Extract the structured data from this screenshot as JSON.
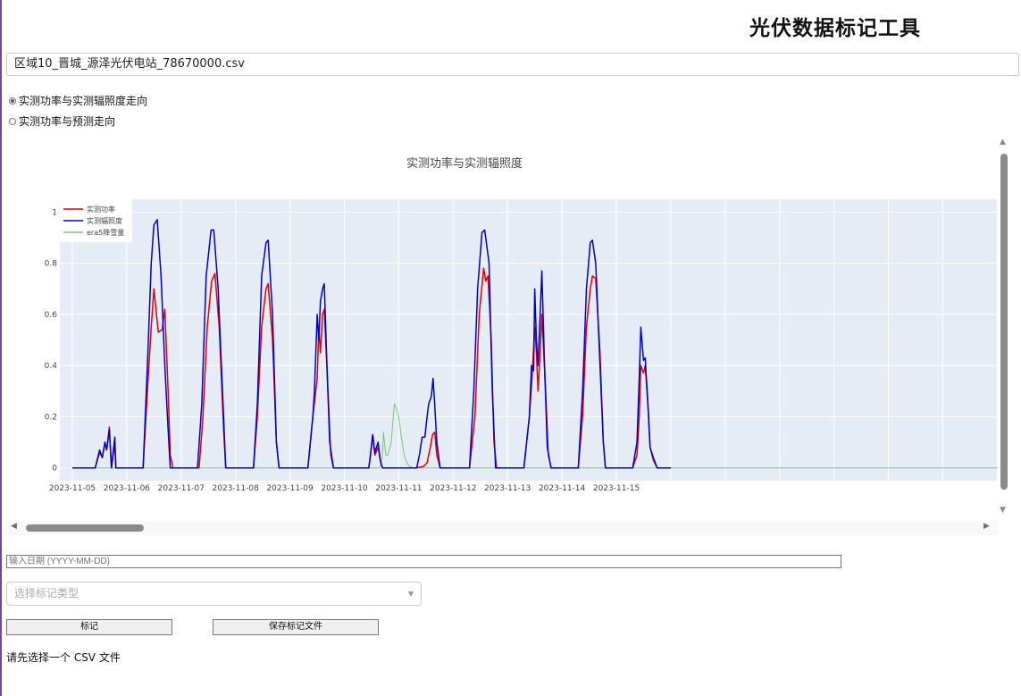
{
  "app": {
    "title": "光伏数据标记工具"
  },
  "file_select": {
    "value": "区域10_晋城_源泽光伏电站_78670000.csv"
  },
  "view_options": [
    {
      "label": "实测功率与实测辐照度走向",
      "selected": true
    },
    {
      "label": "实测功率与预测走向",
      "selected": false
    }
  ],
  "chart_data": {
    "type": "line",
    "title": "实测功率与实测辐照度",
    "x_ticks": [
      "2023-11-05",
      "2023-11-06",
      "2023-11-07",
      "2023-11-08",
      "2023-11-09",
      "2023-11-10",
      "2023-11-11",
      "2023-11-12",
      "2023-11-13",
      "2023-11-14",
      "2023-11-15"
    ],
    "y_ticks": [
      "0",
      "0.2",
      "0.4",
      "0.6",
      "0.8",
      "1"
    ],
    "ylim": [
      -0.05,
      1.05
    ],
    "grid": true,
    "legend_position": "top-left",
    "series": [
      {
        "name": "实测功率",
        "color": "#e00000",
        "points": [
          [
            0,
            0
          ],
          [
            0.42,
            0
          ],
          [
            0.5,
            0.06
          ],
          [
            0.55,
            0.04
          ],
          [
            0.6,
            0.1
          ],
          [
            0.63,
            0.07
          ],
          [
            0.68,
            0.16
          ],
          [
            0.72,
            0
          ],
          [
            0.78,
            0.1
          ],
          [
            0.8,
            0
          ],
          [
            0.86,
            0
          ],
          [
            1.3,
            0
          ],
          [
            1.38,
            0.3
          ],
          [
            1.45,
            0.55
          ],
          [
            1.5,
            0.7
          ],
          [
            1.58,
            0.53
          ],
          [
            1.65,
            0.54
          ],
          [
            1.7,
            0.62
          ],
          [
            1.76,
            0.3
          ],
          [
            1.8,
            0.05
          ],
          [
            1.85,
            0
          ],
          [
            2.33,
            0
          ],
          [
            2.4,
            0.2
          ],
          [
            2.48,
            0.55
          ],
          [
            2.56,
            0.73
          ],
          [
            2.62,
            0.76
          ],
          [
            2.7,
            0.55
          ],
          [
            2.78,
            0.15
          ],
          [
            2.82,
            0
          ],
          [
            3.33,
            0
          ],
          [
            3.4,
            0.2
          ],
          [
            3.48,
            0.55
          ],
          [
            3.56,
            0.7
          ],
          [
            3.6,
            0.72
          ],
          [
            3.68,
            0.5
          ],
          [
            3.75,
            0.1
          ],
          [
            3.8,
            0
          ],
          [
            4.33,
            0
          ],
          [
            4.42,
            0.2
          ],
          [
            4.5,
            0.35
          ],
          [
            4.53,
            0.55
          ],
          [
            4.56,
            0.45
          ],
          [
            4.6,
            0.6
          ],
          [
            4.63,
            0.62
          ],
          [
            4.7,
            0.3
          ],
          [
            4.75,
            0.05
          ],
          [
            4.8,
            0
          ],
          [
            5.45,
            0
          ],
          [
            5.48,
            0.05
          ],
          [
            5.52,
            0.13
          ],
          [
            5.56,
            0.05
          ],
          [
            5.62,
            0.08
          ],
          [
            5.66,
            0.03
          ],
          [
            5.7,
            0
          ],
          [
            6.3,
            0
          ],
          [
            6.45,
            0.005
          ],
          [
            6.52,
            0.02
          ],
          [
            6.58,
            0.08
          ],
          [
            6.62,
            0.13
          ],
          [
            6.66,
            0.14
          ],
          [
            6.7,
            0.05
          ],
          [
            6.76,
            0
          ],
          [
            7.3,
            0
          ],
          [
            7.4,
            0.2
          ],
          [
            7.48,
            0.6
          ],
          [
            7.56,
            0.78
          ],
          [
            7.6,
            0.73
          ],
          [
            7.64,
            0.75
          ],
          [
            7.7,
            0.5
          ],
          [
            7.75,
            0.1
          ],
          [
            7.8,
            0
          ],
          [
            8.3,
            0
          ],
          [
            8.4,
            0.2
          ],
          [
            8.45,
            0.35
          ],
          [
            8.5,
            0.55
          ],
          [
            8.53,
            0.45
          ],
          [
            8.56,
            0.3
          ],
          [
            8.6,
            0.45
          ],
          [
            8.63,
            0.6
          ],
          [
            8.7,
            0.3
          ],
          [
            8.75,
            0.05
          ],
          [
            8.8,
            0
          ],
          [
            9.3,
            0
          ],
          [
            9.38,
            0.2
          ],
          [
            9.45,
            0.55
          ],
          [
            9.52,
            0.7
          ],
          [
            9.56,
            0.75
          ],
          [
            9.62,
            0.74
          ],
          [
            9.7,
            0.45
          ],
          [
            9.76,
            0.1
          ],
          [
            9.8,
            0
          ],
          [
            10.3,
            0
          ],
          [
            10.38,
            0.05
          ],
          [
            10.42,
            0.2
          ],
          [
            10.45,
            0.4
          ],
          [
            10.5,
            0.37
          ],
          [
            10.53,
            0.4
          ],
          [
            10.58,
            0.25
          ],
          [
            10.62,
            0.08
          ],
          [
            10.68,
            0.03
          ],
          [
            10.75,
            0
          ],
          [
            11.0,
            0
          ]
        ]
      },
      {
        "name": "实测辐照度",
        "color": "#0000c8",
        "points": [
          [
            0,
            0
          ],
          [
            0.42,
            0
          ],
          [
            0.5,
            0.07
          ],
          [
            0.55,
            0.04
          ],
          [
            0.6,
            0.1
          ],
          [
            0.63,
            0.07
          ],
          [
            0.68,
            0.15
          ],
          [
            0.72,
            0
          ],
          [
            0.78,
            0.12
          ],
          [
            0.8,
            0
          ],
          [
            0.86,
            0
          ],
          [
            1.3,
            0
          ],
          [
            1.38,
            0.4
          ],
          [
            1.45,
            0.8
          ],
          [
            1.5,
            0.95
          ],
          [
            1.56,
            0.97
          ],
          [
            1.63,
            0.75
          ],
          [
            1.7,
            0.4
          ],
          [
            1.76,
            0.15
          ],
          [
            1.8,
            0
          ],
          [
            2.3,
            0
          ],
          [
            2.38,
            0.25
          ],
          [
            2.46,
            0.75
          ],
          [
            2.55,
            0.93
          ],
          [
            2.6,
            0.93
          ],
          [
            2.68,
            0.7
          ],
          [
            2.78,
            0.2
          ],
          [
            2.82,
            0
          ],
          [
            3.33,
            0
          ],
          [
            3.4,
            0.25
          ],
          [
            3.48,
            0.75
          ],
          [
            3.56,
            0.88
          ],
          [
            3.6,
            0.89
          ],
          [
            3.68,
            0.6
          ],
          [
            3.75,
            0.1
          ],
          [
            3.8,
            0
          ],
          [
            4.33,
            0
          ],
          [
            4.42,
            0.2
          ],
          [
            4.45,
            0.3
          ],
          [
            4.5,
            0.6
          ],
          [
            4.53,
            0.5
          ],
          [
            4.56,
            0.65
          ],
          [
            4.6,
            0.7
          ],
          [
            4.63,
            0.72
          ],
          [
            4.68,
            0.4
          ],
          [
            4.73,
            0.1
          ],
          [
            4.8,
            0
          ],
          [
            5.45,
            0
          ],
          [
            5.48,
            0.05
          ],
          [
            5.52,
            0.13
          ],
          [
            5.56,
            0.06
          ],
          [
            5.62,
            0.1
          ],
          [
            5.66,
            0.03
          ],
          [
            5.7,
            0
          ],
          [
            6.33,
            0
          ],
          [
            6.38,
            0.05
          ],
          [
            6.43,
            0.12
          ],
          [
            6.48,
            0.12
          ],
          [
            6.52,
            0.2
          ],
          [
            6.55,
            0.25
          ],
          [
            6.6,
            0.28
          ],
          [
            6.63,
            0.35
          ],
          [
            6.66,
            0.25
          ],
          [
            6.7,
            0.1
          ],
          [
            6.76,
            0
          ],
          [
            7.3,
            0
          ],
          [
            7.38,
            0.3
          ],
          [
            7.45,
            0.7
          ],
          [
            7.53,
            0.92
          ],
          [
            7.58,
            0.93
          ],
          [
            7.66,
            0.8
          ],
          [
            7.72,
            0.3
          ],
          [
            7.78,
            0
          ],
          [
            8.3,
            0
          ],
          [
            8.4,
            0.2
          ],
          [
            8.44,
            0.4
          ],
          [
            8.48,
            0.38
          ],
          [
            8.5,
            0.7
          ],
          [
            8.53,
            0.5
          ],
          [
            8.56,
            0.4
          ],
          [
            8.6,
            0.6
          ],
          [
            8.63,
            0.77
          ],
          [
            8.68,
            0.4
          ],
          [
            8.73,
            0.08
          ],
          [
            8.8,
            0
          ],
          [
            9.3,
            0
          ],
          [
            9.38,
            0.3
          ],
          [
            9.45,
            0.7
          ],
          [
            9.52,
            0.88
          ],
          [
            9.56,
            0.89
          ],
          [
            9.62,
            0.8
          ],
          [
            9.7,
            0.4
          ],
          [
            9.76,
            0.1
          ],
          [
            9.8,
            0
          ],
          [
            10.3,
            0
          ],
          [
            10.38,
            0.1
          ],
          [
            10.42,
            0.35
          ],
          [
            10.45,
            0.55
          ],
          [
            10.5,
            0.42
          ],
          [
            10.53,
            0.43
          ],
          [
            10.58,
            0.25
          ],
          [
            10.62,
            0.08
          ],
          [
            10.68,
            0.04
          ],
          [
            10.75,
            0
          ],
          [
            11.0,
            0
          ]
        ]
      },
      {
        "name": "era5降雪量",
        "color": "#7bc47b",
        "points": [
          [
            0,
            0
          ],
          [
            5.65,
            0
          ],
          [
            5.7,
            0.05
          ],
          [
            5.72,
            0.14
          ],
          [
            5.76,
            0.05
          ],
          [
            5.8,
            0.05
          ],
          [
            5.86,
            0.1
          ],
          [
            5.92,
            0.25
          ],
          [
            5.96,
            0.23
          ],
          [
            6.0,
            0.2
          ],
          [
            6.05,
            0.12
          ],
          [
            6.1,
            0.05
          ],
          [
            6.15,
            0.02
          ],
          [
            6.2,
            0.005
          ],
          [
            6.3,
            0
          ],
          [
            11.0,
            0
          ],
          [
            17.5,
            0
          ]
        ]
      }
    ]
  },
  "date_input": {
    "placeholder": "输入日期 (YYYY-MM-DD)"
  },
  "mark_type_select": {
    "placeholder": "选择标记类型"
  },
  "buttons": {
    "mark": "标记",
    "save": "保存标记文件"
  },
  "status_text": "请先选择一个 CSV 文件"
}
